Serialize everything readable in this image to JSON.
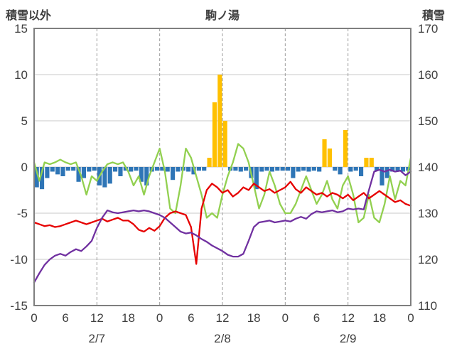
{
  "title": "駒ノ湯",
  "left_axis_title": "積雪以外",
  "right_axis_title": "積雪",
  "colors": {
    "orange_bar": "#FFC000",
    "blue_bar": "#2E75B6",
    "green_line": "#92D050",
    "red_line": "#E60000",
    "purple_line": "#7030A0",
    "grid": "#C8C8C8",
    "grid_dashed": "#9B9B9B",
    "border": "#7F7F7F",
    "text": "#3F3F3F"
  },
  "chart_data": {
    "type": "line",
    "title": "駒ノ湯",
    "x_unit": "hour",
    "x_range_hours": [
      0,
      72
    ],
    "x_tick_interval_hours": 6,
    "x_tick_labels": [
      "0",
      "6",
      "12",
      "18",
      "0",
      "6",
      "12",
      "18",
      "0",
      "6",
      "12",
      "18",
      "0"
    ],
    "day_labels": [
      {
        "label": "2/7",
        "center_hour": 12
      },
      {
        "label": "2/8",
        "center_hour": 36
      },
      {
        "label": "2/9",
        "center_hour": 60
      }
    ],
    "left_axis": {
      "label": "積雪以外",
      "min": -15,
      "max": 15,
      "ticks": [
        15,
        10,
        5,
        0,
        -5,
        -10,
        -15
      ]
    },
    "right_axis": {
      "label": "積雪",
      "min": 110,
      "max": 170,
      "ticks": [
        170,
        160,
        150,
        140,
        130,
        120,
        110
      ]
    },
    "grid": {
      "horizontal": "solid",
      "vertical_dashed_every_hours": 12
    },
    "series": [
      {
        "name": "orange-bars",
        "kind": "bar",
        "axis": "left",
        "color": "#FFC000",
        "values": [
          0,
          0,
          0,
          0,
          0,
          0,
          0,
          0,
          0,
          0,
          0,
          0,
          0,
          0,
          0,
          0,
          0,
          0,
          0,
          0,
          0,
          0,
          0,
          0,
          0,
          0,
          0,
          0,
          0,
          0,
          0,
          0,
          0,
          1,
          7,
          10,
          5,
          0,
          0,
          0,
          0,
          0,
          0,
          0,
          0,
          0,
          0,
          0,
          0,
          0,
          0,
          0,
          0,
          0,
          0,
          3,
          2,
          0,
          0,
          4,
          0,
          0,
          0,
          1,
          1,
          0,
          0,
          0,
          0,
          0,
          0,
          0
        ]
      },
      {
        "name": "blue-bars",
        "kind": "bar",
        "axis": "left",
        "color": "#2E75B6",
        "values": [
          -2.2,
          -2.4,
          -1.2,
          -0.5,
          -0.8,
          -1.0,
          -0.4,
          -0.4,
          -1.6,
          -1.2,
          -0.5,
          -0.4,
          -2.0,
          -2.2,
          -1.8,
          -0.5,
          -1.0,
          -0.4,
          -0.5,
          -0.4,
          -1.6,
          -2.0,
          -0.5,
          -0.4,
          -0.4,
          -0.5,
          -1.4,
          -0.5,
          -0.4,
          -0.5,
          -0.8,
          -0.4,
          -0.4,
          0,
          0,
          0,
          0,
          -0.4,
          -0.4,
          -0.5,
          -0.4,
          -1.2,
          -2.4,
          -0.5,
          -0.4,
          -0.5,
          -0.4,
          -0.4,
          -0.4,
          -1.2,
          -0.5,
          -0.4,
          -0.5,
          -0.4,
          -0.5,
          0,
          0,
          -0.4,
          -0.8,
          0,
          -0.5,
          -0.4,
          -1.0,
          0,
          0,
          -0.4,
          -2.0,
          -1.2,
          -0.5,
          -0.4,
          -0.5,
          -0.4
        ]
      },
      {
        "name": "green-line",
        "kind": "line",
        "axis": "left",
        "color": "#92D050",
        "values": [
          0.5,
          -1.5,
          0.5,
          0.3,
          0.5,
          0.8,
          0.5,
          0.3,
          0.5,
          -1.0,
          -3.0,
          -1.0,
          -1.5,
          -0.5,
          0.3,
          0.5,
          0.3,
          0.5,
          -0.5,
          -2.0,
          -1.0,
          -3.0,
          -1.0,
          0.5,
          2.0,
          -0.5,
          -4.5,
          -5.0,
          -2.0,
          2.0,
          1.0,
          -1.0,
          -3.0,
          -5.5,
          -5.0,
          -5.5,
          -3.0,
          -1.0,
          0.5,
          2.5,
          2.0,
          0.5,
          -2.0,
          -4.5,
          -3.0,
          -0.5,
          -2.0,
          -4.0,
          -5.0,
          -5.0,
          -4.0,
          -2.5,
          -1.0,
          -2.5,
          -4.0,
          -3.0,
          -1.5,
          -3.5,
          -4.5,
          -2.0,
          -1.0,
          -3.0,
          -6.0,
          -5.5,
          -3.0,
          -5.5,
          -6.0,
          -4.0,
          -1.0,
          -3.5,
          -1.5,
          -2.0,
          1.0
        ]
      },
      {
        "name": "red-line",
        "kind": "line",
        "axis": "left",
        "color": "#E60000",
        "values": [
          -6.0,
          -6.2,
          -6.4,
          -6.3,
          -6.5,
          -6.4,
          -6.2,
          -6.0,
          -5.8,
          -6.0,
          -6.2,
          -6.0,
          -5.8,
          -5.6,
          -5.9,
          -5.7,
          -5.5,
          -5.8,
          -5.8,
          -6.2,
          -6.8,
          -7.0,
          -6.6,
          -6.9,
          -6.4,
          -5.5,
          -5.0,
          -4.8,
          -5.0,
          -5.2,
          -6.5,
          -10.5,
          -4.5,
          -2.5,
          -1.8,
          -2.2,
          -2.8,
          -2.5,
          -3.2,
          -2.8,
          -2.2,
          -2.5,
          -1.8,
          -2.2,
          -2.6,
          -2.4,
          -2.8,
          -2.5,
          -2.2,
          -1.6,
          -2.4,
          -2.8,
          -2.2,
          -2.6,
          -3.0,
          -2.8,
          -3.2,
          -2.8,
          -3.0,
          -3.4,
          -3.0,
          -3.6,
          -3.2,
          -2.8,
          -3.4,
          -3.0,
          -2.6,
          -3.0,
          -3.4,
          -3.8,
          -3.6,
          -4.0,
          -4.2
        ]
      },
      {
        "name": "purple-line",
        "kind": "line",
        "axis": "left",
        "color": "#7030A0",
        "values": [
          -12.5,
          -11.5,
          -10.6,
          -10.0,
          -9.6,
          -9.4,
          -9.6,
          -9.2,
          -8.9,
          -9.1,
          -8.6,
          -8.0,
          -6.6,
          -5.5,
          -4.7,
          -4.9,
          -5.0,
          -4.9,
          -4.8,
          -4.7,
          -4.8,
          -4.7,
          -4.8,
          -5.0,
          -5.2,
          -5.5,
          -6.0,
          -6.5,
          -7.0,
          -7.2,
          -7.1,
          -7.4,
          -7.8,
          -8.1,
          -8.5,
          -8.8,
          -9.1,
          -9.5,
          -9.7,
          -9.7,
          -9.4,
          -8.0,
          -6.5,
          -6.0,
          -5.9,
          -5.8,
          -6.0,
          -5.9,
          -5.8,
          -5.9,
          -5.6,
          -5.4,
          -5.6,
          -5.1,
          -4.8,
          -4.9,
          -4.8,
          -4.7,
          -4.9,
          -4.8,
          -4.5,
          -4.6,
          -4.5,
          -4.6,
          -2.5,
          -0.5,
          -0.3,
          -0.5,
          -0.3,
          -0.5,
          -0.4,
          -0.9,
          -0.5
        ]
      }
    ]
  }
}
